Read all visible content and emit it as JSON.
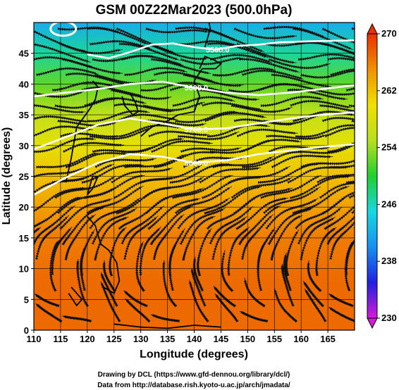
{
  "chart_data": {
    "type": "heatmap",
    "title": "GSM 00Z22Mar2023 (500.0hPa)",
    "xlabel": "Longitude (degrees)",
    "ylabel": "Latitude  (degrees)",
    "xlim": [
      110,
      170
    ],
    "ylim": [
      0,
      50
    ],
    "xticks": [
      110,
      115,
      120,
      125,
      130,
      135,
      140,
      145,
      150,
      155,
      160,
      165
    ],
    "yticks": [
      0,
      5,
      10,
      15,
      20,
      25,
      30,
      35,
      40,
      45
    ],
    "grid": true,
    "field": "temperature (shaded) with streamlines",
    "colorbar": {
      "min": 230,
      "max": 270,
      "ticks": [
        230,
        238,
        246,
        254,
        262,
        270
      ],
      "colors": [
        "#d81ad8",
        "#2020e0",
        "#1890f0",
        "#18d8e0",
        "#20d030",
        "#b8e020",
        "#f0e000",
        "#f09000",
        "#e83000"
      ]
    },
    "temperature_profile": {
      "lat": [
        0,
        8,
        15,
        20,
        25,
        30,
        35,
        40,
        45,
        50
      ],
      "value": [
        267,
        267,
        266,
        264,
        262,
        259,
        256,
        252,
        247,
        242
      ]
    },
    "contours": [
      {
        "label": "5500.0",
        "lon": [
          120,
          124,
          128,
          132,
          136,
          140,
          144,
          148,
          152,
          156,
          160,
          164,
          170
        ],
        "lat": [
          44.8,
          44.2,
          45.2,
          46.4,
          46.6,
          46.0,
          45.6,
          46.2,
          46.4,
          46.8,
          46.9,
          47.0,
          47.1
        ]
      },
      {
        "label": "5600.0",
        "lon": [
          110,
          116,
          122,
          128,
          134,
          140,
          146,
          152,
          158,
          164,
          170
        ],
        "lat": [
          38.0,
          38.6,
          39.2,
          40.0,
          40.4,
          39.4,
          38.6,
          38.2,
          38.6,
          39.2,
          39.8
        ]
      },
      {
        "label": "5700.0",
        "lon": [
          110,
          116,
          122,
          128,
          134,
          140,
          146,
          152,
          158,
          164,
          170
        ],
        "lat": [
          29.4,
          31.4,
          33.4,
          34.4,
          33.6,
          32.6,
          32.8,
          33.6,
          34.4,
          35.0,
          35.4
        ]
      },
      {
        "label": "5800.0",
        "lon": [
          110,
          116,
          122,
          128,
          134,
          140,
          146,
          152,
          158,
          164,
          170
        ],
        "lat": [
          22.0,
          24.8,
          27.2,
          28.6,
          28.2,
          27.2,
          27.6,
          28.6,
          29.2,
          29.8,
          30.2
        ]
      }
    ],
    "low_center": {
      "lon": 115.5,
      "lat": 49.0
    },
    "wind": [
      {
        "lat": 48,
        "u": 1.0,
        "v": -0.15
      },
      {
        "lat": 43,
        "u": 1.0,
        "v": 0.0
      },
      {
        "lat": 38,
        "u": 1.0,
        "v": 0.05
      },
      {
        "lat": 33,
        "u": 1.0,
        "v": 0.12
      },
      {
        "lat": 28,
        "u": 1.0,
        "v": 0.2
      },
      {
        "lat": 23,
        "u": 1.0,
        "v": 0.35
      },
      {
        "lat": 18,
        "u": 0.8,
        "v": 0.5
      },
      {
        "lat": 13,
        "u": 0.3,
        "v": 0.8
      },
      {
        "lat": 8,
        "u": -0.2,
        "v": 0.6
      },
      {
        "lat": 3,
        "u": -0.4,
        "v": 0.3
      }
    ],
    "coast_outlines": [
      {
        "lon": [
          121,
          122,
          121.5,
          120.5,
          118,
          117,
          116
        ],
        "lat": [
          40.5,
          39.5,
          37.5,
          36,
          33,
          28,
          24
        ]
      },
      {
        "lon": [
          126.5,
          127,
          128.5,
          129.5,
          129,
          128
        ],
        "lat": [
          38,
          36.5,
          35,
          35.5,
          37,
          38.5
        ]
      },
      {
        "lon": [
          130,
          132,
          135,
          137,
          140,
          141,
          140,
          141.5
        ],
        "lat": [
          31.5,
          33,
          34,
          35,
          35.5,
          38,
          40.5,
          42.5
        ]
      },
      {
        "lon": [
          141,
          142,
          143.5,
          145,
          144,
          141.5
        ],
        "lat": [
          42.5,
          44.5,
          44,
          43.3,
          42.5,
          42.5
        ]
      },
      {
        "lon": [
          142,
          143,
          142.5,
          143.5
        ],
        "lat": [
          46,
          49,
          51,
          53
        ]
      },
      {
        "lon": [
          120,
          121,
          122,
          121,
          120
        ],
        "lat": [
          22,
          23,
          25,
          25,
          22
        ]
      },
      {
        "lon": [
          120,
          121.5,
          122.5,
          124,
          125.5,
          126,
          125,
          123
        ],
        "lat": [
          18.5,
          17,
          14,
          13,
          11,
          8,
          6,
          7
        ]
      },
      {
        "lon": [
          117,
          119,
          118,
          116.5
        ],
        "lat": [
          7,
          5,
          4,
          6
        ]
      },
      {
        "lon": [
          125,
          130,
          135,
          140,
          145
        ],
        "lat": [
          1,
          0.5,
          0.3,
          0.8,
          0.5
        ]
      }
    ]
  },
  "credits": [
    "Drawing by DCL (https://www.gfd-dennou.org/library/dcl/)",
    "Data from http://database.rish.kyoto-u.ac.jp/arch/jmadata/"
  ]
}
